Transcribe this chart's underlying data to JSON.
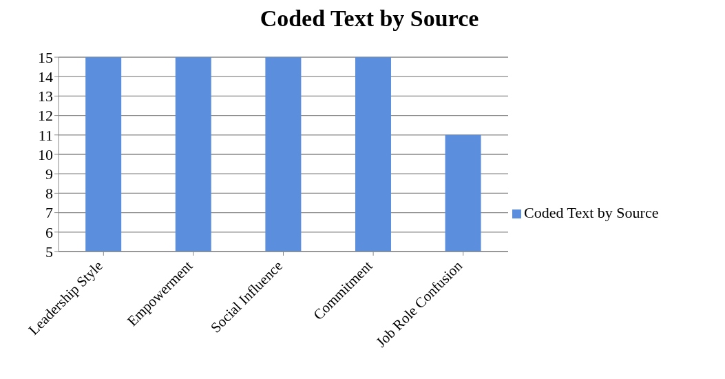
{
  "chart_data": {
    "type": "bar",
    "title": "Coded Text by Source",
    "categories": [
      "Leadership Style",
      "Empowerment",
      "Social Influence",
      "Commitment",
      "Job Role Confusion"
    ],
    "series": [
      {
        "name": "Coded Text by Source",
        "color": "#5b8fdd",
        "values": [
          15,
          15,
          15,
          15,
          11
        ]
      }
    ],
    "ylim": [
      5,
      15
    ],
    "yticks": [
      5,
      6,
      7,
      8,
      9,
      10,
      11,
      12,
      13,
      14,
      15
    ],
    "grid": "y",
    "legend": "right"
  }
}
